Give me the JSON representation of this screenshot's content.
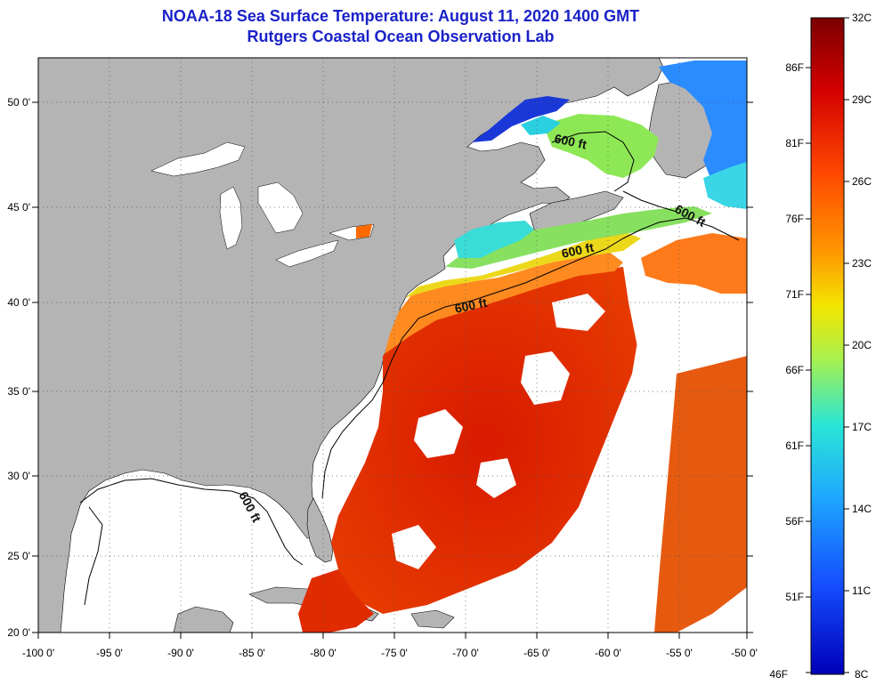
{
  "header": {
    "title": "NOAA-18 Sea Surface Temperature:  August 11, 2020 1400 GMT",
    "subtitle": "Rutgers Coastal Ocean Observation Lab"
  },
  "axes": {
    "lon_ticks": [
      "-100 0'",
      "-95 0'",
      "-90 0'",
      "-85 0'",
      "-80 0'",
      "-75 0'",
      "-70 0'",
      "-65 0'",
      "-60 0'",
      "-55 0'",
      "-50 0'"
    ],
    "lat_ticks": [
      "20 0'",
      "25 0'",
      "30 0'",
      "35 0'",
      "40 0'",
      "45 0'",
      "50 0'"
    ],
    "lon_range": [
      -100,
      -50
    ],
    "lat_range": [
      20,
      52.5
    ],
    "grid": "dotted"
  },
  "contours": {
    "labels": [
      "600 ft",
      "600 ft",
      "600 ft",
      "600 ft",
      "600 ft"
    ]
  },
  "colorbar": {
    "celsius": [
      "32C",
      "29C",
      "26C",
      "23C",
      "20C",
      "17C",
      "14C",
      "11C",
      "8C"
    ],
    "fahrenheit": [
      "86F",
      "81F",
      "76F",
      "71F",
      "66F",
      "61F",
      "56F",
      "51F",
      "46F"
    ],
    "range_c": [
      8,
      32
    ],
    "colors": [
      "#7a0000",
      "#d40000",
      "#ff4a00",
      "#ff9a00",
      "#f2e600",
      "#a8f050",
      "#29e6d6",
      "#1fa8ff",
      "#1550ff",
      "#0000b8"
    ]
  },
  "colors": {
    "land": "#b4b4b4",
    "cloud_or_nodata": "#ffffff",
    "title": "#1a22c8"
  }
}
